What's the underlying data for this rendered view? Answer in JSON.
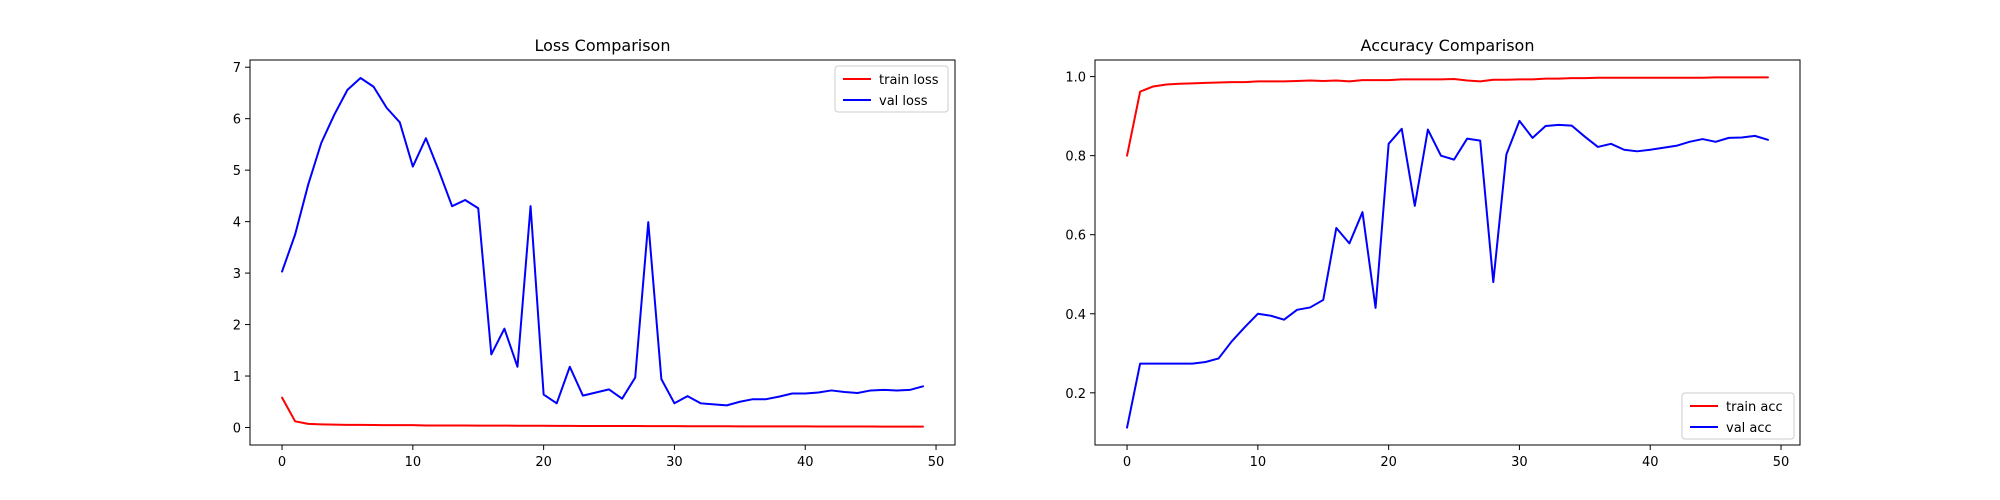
{
  "chart_data": [
    {
      "type": "line",
      "title": "Loss Comparison",
      "xlabel": "",
      "ylabel": "",
      "xlim": [
        -2.45,
        51.45
      ],
      "ylim": [
        -0.34,
        7.14
      ],
      "xticks": [
        0,
        10,
        20,
        30,
        40,
        50
      ],
      "yticks": [
        0,
        1,
        2,
        3,
        4,
        5,
        6,
        7
      ],
      "legend_position": "top-right",
      "grid": false,
      "x": [
        0,
        1,
        2,
        3,
        4,
        5,
        6,
        7,
        8,
        9,
        10,
        11,
        12,
        13,
        14,
        15,
        16,
        17,
        18,
        19,
        20,
        21,
        22,
        23,
        24,
        25,
        26,
        27,
        28,
        29,
        30,
        31,
        32,
        33,
        34,
        35,
        36,
        37,
        38,
        39,
        40,
        41,
        42,
        43,
        44,
        45,
        46,
        47,
        48,
        49
      ],
      "series": [
        {
          "name": "train loss",
          "color": "#ff0000",
          "values": [
            0.58,
            0.12,
            0.07,
            0.06,
            0.055,
            0.05,
            0.05,
            0.048,
            0.045,
            0.045,
            0.045,
            0.04,
            0.04,
            0.04,
            0.038,
            0.037,
            0.036,
            0.036,
            0.035,
            0.034,
            0.033,
            0.032,
            0.031,
            0.03,
            0.03,
            0.029,
            0.028,
            0.028,
            0.027,
            0.027,
            0.026,
            0.025,
            0.025,
            0.024,
            0.024,
            0.023,
            0.023,
            0.022,
            0.022,
            0.021,
            0.021,
            0.02,
            0.02,
            0.02,
            0.019,
            0.019,
            0.018,
            0.018,
            0.018,
            0.017
          ]
        },
        {
          "name": "val loss",
          "color": "#0000ff",
          "values": [
            3.03,
            3.75,
            4.72,
            5.53,
            6.08,
            6.56,
            6.79,
            6.62,
            6.21,
            5.93,
            5.07,
            5.62,
            4.98,
            4.3,
            4.42,
            4.26,
            1.42,
            1.92,
            1.18,
            4.3,
            0.64,
            0.47,
            1.18,
            0.62,
            0.68,
            0.74,
            0.56,
            0.97,
            3.99,
            0.94,
            0.47,
            0.61,
            0.47,
            0.45,
            0.43,
            0.5,
            0.55,
            0.55,
            0.6,
            0.66,
            0.66,
            0.68,
            0.72,
            0.69,
            0.67,
            0.72,
            0.73,
            0.72,
            0.73,
            0.8
          ]
        }
      ]
    },
    {
      "type": "line",
      "title": "Accuracy Comparison",
      "xlabel": "",
      "ylabel": "",
      "xlim": [
        -2.45,
        51.45
      ],
      "ylim": [
        0.068,
        1.042
      ],
      "xticks": [
        0,
        10,
        20,
        30,
        40,
        50
      ],
      "yticks": [
        0.2,
        0.4,
        0.6,
        0.8,
        1.0
      ],
      "ytick_labels": [
        "0.2",
        "0.4",
        "0.6",
        "0.8",
        "1.0"
      ],
      "legend_position": "bottom-right",
      "grid": false,
      "x": [
        0,
        1,
        2,
        3,
        4,
        5,
        6,
        7,
        8,
        9,
        10,
        11,
        12,
        13,
        14,
        15,
        16,
        17,
        18,
        19,
        20,
        21,
        22,
        23,
        24,
        25,
        26,
        27,
        28,
        29,
        30,
        31,
        32,
        33,
        34,
        35,
        36,
        37,
        38,
        39,
        40,
        41,
        42,
        43,
        44,
        45,
        46,
        47,
        48,
        49
      ],
      "series": [
        {
          "name": "train acc",
          "color": "#ff0000",
          "values": [
            0.8,
            0.962,
            0.975,
            0.98,
            0.982,
            0.983,
            0.984,
            0.985,
            0.986,
            0.986,
            0.988,
            0.988,
            0.988,
            0.989,
            0.99,
            0.989,
            0.99,
            0.988,
            0.991,
            0.991,
            0.991,
            0.993,
            0.993,
            0.993,
            0.993,
            0.994,
            0.99,
            0.988,
            0.992,
            0.992,
            0.993,
            0.993,
            0.995,
            0.995,
            0.996,
            0.996,
            0.997,
            0.997,
            0.997,
            0.997,
            0.997,
            0.997,
            0.997,
            0.997,
            0.997,
            0.998,
            0.998,
            0.998,
            0.998,
            0.998
          ]
        },
        {
          "name": "val acc",
          "color": "#0000ff",
          "values": [
            0.112,
            0.274,
            0.274,
            0.274,
            0.274,
            0.274,
            0.278,
            0.287,
            0.33,
            0.366,
            0.4,
            0.395,
            0.385,
            0.41,
            0.416,
            0.435,
            0.617,
            0.578,
            0.657,
            0.415,
            0.83,
            0.868,
            0.673,
            0.866,
            0.8,
            0.79,
            0.843,
            0.838,
            0.48,
            0.803,
            0.888,
            0.845,
            0.875,
            0.878,
            0.876,
            0.848,
            0.822,
            0.83,
            0.815,
            0.811,
            0.815,
            0.82,
            0.825,
            0.835,
            0.842,
            0.835,
            0.845,
            0.846,
            0.85,
            0.84
          ]
        }
      ]
    }
  ]
}
